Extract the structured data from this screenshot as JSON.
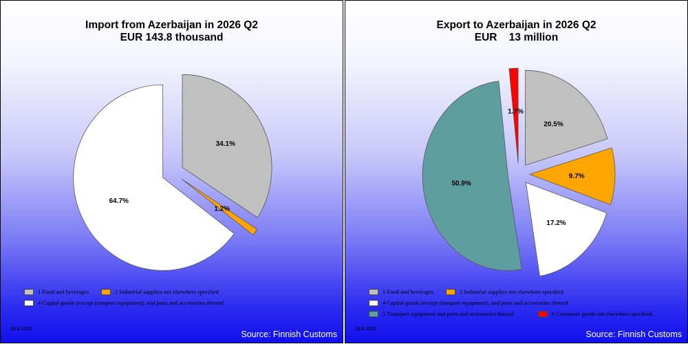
{
  "left": {
    "title_line1": "Import from Azerbaijan in 2026 Q2",
    "title_line2": "EUR 143.8 thousand",
    "date": "28.8.2026",
    "source": "Source: Finnish Customs"
  },
  "right": {
    "title_line1": "Export to Azerbaijan in 2026 Q2",
    "title_line2": "EUR    13 million",
    "date": "28.8.2026",
    "source": "Source: Finnish Customs"
  },
  "chart_data": [
    {
      "type": "pie",
      "title": "Import from Azerbaijan in 2026 Q2 EUR 143.8 thousand",
      "legend_placement": "bottom",
      "slices": [
        {
          "name": "1 Food and beverages",
          "value": 34.1,
          "label": "34.1%",
          "color": "#c0c0c0"
        },
        {
          "name": "2 Industrial supplies not elsewhere specified",
          "value": 1.2,
          "label": "1.2%",
          "color": "#ffa500"
        },
        {
          "name": "4 Capital goods (except transport equipment), and parts and accessories thereof",
          "value": 64.7,
          "label": "64.7%",
          "color": "#ffffff"
        }
      ]
    },
    {
      "type": "pie",
      "title": "Export to Azerbaijan in 2026 Q2 EUR 13 million",
      "legend_placement": "bottom",
      "slices": [
        {
          "name": "1 Food and beverages",
          "value": 20.5,
          "label": "20.5%",
          "color": "#c0c0c0"
        },
        {
          "name": "2 Industrial supplies not elsewhere specified",
          "value": 9.7,
          "label": "9.7%",
          "color": "#ffa500"
        },
        {
          "name": "4 Capital goods (except transport equipment), and parts and accessories thereof",
          "value": 17.2,
          "label": "17.2%",
          "color": "#ffffff"
        },
        {
          "name": "5  Transport equipment and parts and accessories thereof",
          "value": 50.9,
          "label": "50.9%",
          "color": "#5f9ea0"
        },
        {
          "name": "6 Consumer goods not elsewhere specified",
          "value": 1.7,
          "label": "1.7%",
          "color": "#ff0000"
        }
      ]
    }
  ]
}
